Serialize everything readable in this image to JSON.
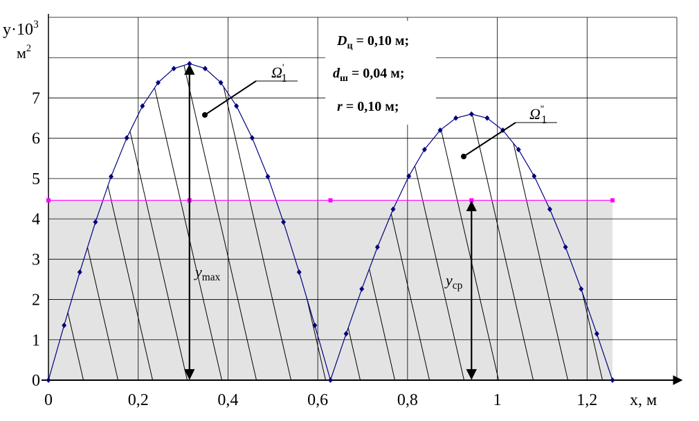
{
  "chart_data": {
    "type": "line",
    "x": [
      0,
      0.0349,
      0.0698,
      0.1047,
      0.1396,
      0.1745,
      0.2094,
      0.2443,
      0.2793,
      0.3142,
      0.3491,
      0.384,
      0.4189,
      0.4538,
      0.4887,
      0.5236,
      0.5585,
      0.5934,
      0.6283,
      0.6632,
      0.6981,
      0.733,
      0.7679,
      0.8029,
      0.8378,
      0.8727,
      0.9076,
      0.9425,
      0.9774,
      1.0123,
      1.0472,
      1.0821,
      1.117,
      1.1519,
      1.1868,
      1.2217,
      1.2566
    ],
    "series": [
      {
        "color": "#000080",
        "values": [
          0,
          1.36,
          2.68,
          3.92,
          5.05,
          6.01,
          6.8,
          7.38,
          7.73,
          7.85,
          7.73,
          7.38,
          6.8,
          6.01,
          5.05,
          3.92,
          2.68,
          1.36,
          0,
          1.15,
          2.26,
          3.3,
          4.24,
          5.06,
          5.72,
          6.2,
          6.5,
          6.6,
          6.5,
          6.2,
          5.72,
          5.06,
          4.24,
          3.3,
          2.26,
          1.15,
          0
        ]
      },
      {
        "color": "#ff00ff",
        "fill": "#e3e3e3",
        "x": [
          0,
          0.3142,
          0.6283,
          0.9425,
          1.2566
        ],
        "values": [
          4.46,
          4.46,
          4.46,
          4.46,
          4.46
        ]
      }
    ],
    "xlim": [
      0,
      1.4
    ],
    "xticks": [
      0,
      {
        "value": 0.2,
        "label": "0,2"
      },
      {
        "value": 0.4,
        "label": "0,4"
      },
      {
        "value": 0.6,
        "label": "0,6"
      },
      {
        "value": 0.8,
        "label": "0,8"
      },
      1,
      {
        "value": 1.2,
        "label": "1,2"
      },
      {
        "value": 1.4,
        "label": null
      }
    ],
    "ylim": [
      0,
      9
    ],
    "yticks": [
      0,
      1,
      2,
      3,
      4,
      5,
      6,
      7
    ],
    "grid": true,
    "y_label": {
      "text": "y·10",
      "sup": "3"
    },
    "y_unit": {
      "text": "м",
      "sup": "2"
    },
    "x_label": "x, м",
    "params": [
      {
        "text": "D",
        "sub": "ц",
        "rest": " = 0,10 м;"
      },
      {
        "text": "d",
        "sub": "ш",
        "rest": " = 0,04 м;"
      },
      {
        "text": "r",
        "rest": " = 0,10 м;"
      }
    ],
    "area1_label": {
      "text": "Ω",
      "sup": "'",
      "sub": "1"
    },
    "area2_label": {
      "text": "Ω",
      "sup": "''",
      "sub": "1"
    },
    "ymax_label": {
      "text": "y",
      "sub": "max"
    },
    "ycp_label": {
      "text": "y",
      "sub": "ср"
    }
  }
}
